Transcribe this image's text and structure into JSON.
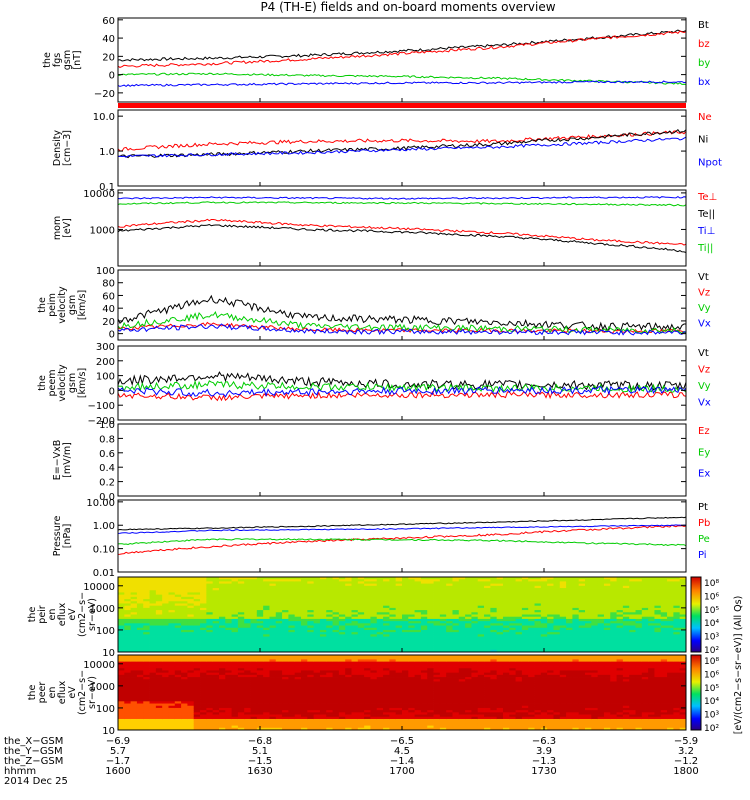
{
  "title": "P4 (TH-E) fields and on-board moments overview",
  "colors": {
    "black": "#000000",
    "red": "#ff0000",
    "green": "#00cc00",
    "blue": "#0000ff"
  },
  "chart_data": [
    {
      "type": "line",
      "panel": "fgs",
      "ylabel_lines": [
        "the",
        "fgs",
        "gsm",
        "[nT]"
      ],
      "ylim": [
        -30,
        62
      ],
      "yscale": "linear",
      "yticks": [
        60,
        40,
        20,
        0,
        -20
      ],
      "ytick_labels": [
        "60",
        "40",
        "20",
        "0",
        "−20"
      ],
      "x": [
        0,
        20,
        40,
        60,
        80,
        100,
        120
      ],
      "series": [
        {
          "name": "Bt",
          "color": "#000000",
          "values": [
            16,
            18,
            21,
            26,
            32,
            40,
            48
          ],
          "noise": 1.5
        },
        {
          "name": "bz",
          "color": "#ff0000",
          "values": [
            9,
            12,
            17,
            23,
            30,
            39,
            47
          ],
          "noise": 1.5
        },
        {
          "name": "by",
          "color": "#00cc00",
          "values": [
            0,
            1,
            -1,
            -2,
            -4,
            -7,
            -10
          ],
          "noise": 1
        },
        {
          "name": "bx",
          "color": "#0000ff",
          "values": [
            -12,
            -11,
            -10,
            -9,
            -9,
            -8,
            -8
          ],
          "noise": 1
        }
      ]
    },
    {
      "type": "line",
      "panel": "density",
      "ylabel_lines": [
        "Density",
        "[cm−3]"
      ],
      "ylim": [
        0.1,
        15
      ],
      "yscale": "log",
      "yticks": [
        10,
        1,
        0.1
      ],
      "ytick_labels": [
        "10.0",
        "1.0",
        "0.1"
      ],
      "x": [
        0,
        20,
        40,
        60,
        80,
        100,
        120
      ],
      "series": [
        {
          "name": "Ne",
          "color": "#ff0000",
          "values": [
            1.1,
            1.6,
            1.9,
            2.0,
            1.9,
            2.6,
            3.5
          ],
          "noise": 0.05
        },
        {
          "name": "Ni",
          "color": "#000000",
          "values": [
            0.7,
            0.8,
            1.0,
            1.2,
            1.6,
            2.4,
            3.8
          ],
          "noise": 0.05
        },
        {
          "name": "Npot",
          "color": "#0000ff",
          "values": [
            0.7,
            0.8,
            0.9,
            1.1,
            1.3,
            1.7,
            2.3
          ],
          "noise": 0.04
        }
      ]
    },
    {
      "type": "line",
      "panel": "temperature",
      "ylabel_lines": [
        "mom",
        "[eV]"
      ],
      "ylim": [
        100,
        12000
      ],
      "yscale": "log",
      "yticks": [
        10000,
        1000
      ],
      "ytick_labels": [
        "10000",
        "1000"
      ],
      "x": [
        0,
        20,
        40,
        60,
        80,
        100,
        120
      ],
      "series": [
        {
          "name": "Te⊥",
          "color": "#ff0000",
          "values": [
            1200,
            1800,
            1300,
            1050,
            800,
            520,
            380
          ],
          "noise": 0.03
        },
        {
          "name": "Te||",
          "color": "#000000",
          "values": [
            900,
            1300,
            1000,
            850,
            650,
            420,
            250
          ],
          "noise": 0.03
        },
        {
          "name": "Ti⊥",
          "color": "#0000ff",
          "values": [
            7000,
            7500,
            7200,
            7000,
            7200,
            7500,
            7600
          ],
          "noise": 0.02
        },
        {
          "name": "Ti||",
          "color": "#00cc00",
          "values": [
            5000,
            5500,
            5400,
            5300,
            5100,
            4900,
            4600
          ],
          "noise": 0.02
        }
      ]
    },
    {
      "type": "line",
      "panel": "velocity-peim",
      "ylabel_lines": [
        "the",
        "peim",
        "velocity",
        "gsm",
        "[km/s]"
      ],
      "ylim": [
        -10,
        100
      ],
      "yscale": "linear",
      "yticks": [
        100,
        80,
        60,
        40,
        20,
        0
      ],
      "ytick_labels": [
        "100",
        "80",
        "60",
        "40",
        "20",
        "0"
      ],
      "x": [
        0,
        20,
        40,
        60,
        80,
        100,
        120
      ],
      "series": [
        {
          "name": "Vt",
          "color": "#000000",
          "values": [
            20,
            55,
            25,
            22,
            18,
            12,
            10
          ],
          "noise": 6
        },
        {
          "name": "Vz",
          "color": "#ff0000",
          "values": [
            8,
            15,
            6,
            5,
            5,
            4,
            4
          ],
          "noise": 3
        },
        {
          "name": "Vy",
          "color": "#00cc00",
          "values": [
            12,
            30,
            12,
            10,
            8,
            6,
            5
          ],
          "noise": 5
        },
        {
          "name": "Vx",
          "color": "#0000ff",
          "values": [
            5,
            12,
            4,
            3,
            3,
            2,
            2
          ],
          "noise": 4
        }
      ]
    },
    {
      "type": "line",
      "panel": "velocity-peem",
      "ylabel_lines": [
        "the",
        "peem",
        "velocity",
        "gsm",
        "[km/s]"
      ],
      "ylim": [
        -200,
        300
      ],
      "yscale": "linear",
      "yticks": [
        300,
        200,
        100,
        0,
        -100,
        -200
      ],
      "ytick_labels": [
        "300",
        "200",
        "100",
        "0",
        "−100",
        "−200"
      ],
      "x": [
        0,
        20,
        40,
        60,
        80,
        100,
        120
      ],
      "series": [
        {
          "name": "Vt",
          "color": "#000000",
          "values": [
            60,
            100,
            60,
            40,
            40,
            35,
            30
          ],
          "noise": 30
        },
        {
          "name": "Vz",
          "color": "#ff0000",
          "values": [
            -30,
            -50,
            -35,
            -30,
            -30,
            -30,
            -30
          ],
          "noise": 20
        },
        {
          "name": "Vy",
          "color": "#00cc00",
          "values": [
            20,
            40,
            25,
            20,
            15,
            15,
            10
          ],
          "noise": 25
        },
        {
          "name": "Vx",
          "color": "#0000ff",
          "values": [
            0,
            -20,
            -10,
            -5,
            0,
            0,
            0
          ],
          "noise": 25
        }
      ]
    },
    {
      "type": "line",
      "panel": "efield",
      "ylabel_lines": [
        "E=−VxB",
        "[mV/m]"
      ],
      "ylim": [
        0,
        1
      ],
      "yscale": "linear",
      "yticks": [
        1.0,
        0.8,
        0.6,
        0.4,
        0.2,
        0.0
      ],
      "ytick_labels": [
        "1.0",
        "0.8",
        "0.6",
        "0.4",
        "0.2",
        "0.0"
      ],
      "x": [],
      "series": [
        {
          "name": "Ez",
          "color": "#ff0000",
          "values": []
        },
        {
          "name": "Ey",
          "color": "#00cc00",
          "values": []
        },
        {
          "name": "Ex",
          "color": "#0000ff",
          "values": []
        }
      ]
    },
    {
      "type": "line",
      "panel": "pressure",
      "ylabel_lines": [
        "Pressure",
        "[nPa]"
      ],
      "ylim": [
        0.01,
        12
      ],
      "yscale": "log",
      "yticks": [
        10,
        1,
        0.1,
        0.01
      ],
      "ytick_labels": [
        "10.00",
        "1.00",
        "0.10",
        "0.01"
      ],
      "x": [
        0,
        20,
        40,
        60,
        80,
        100,
        120
      ],
      "series": [
        {
          "name": "Pt",
          "color": "#000000",
          "values": [
            0.65,
            0.75,
            0.9,
            1.1,
            1.35,
            1.7,
            2.2
          ],
          "noise": 0.02
        },
        {
          "name": "Pb",
          "color": "#ff0000",
          "values": [
            0.06,
            0.12,
            0.2,
            0.28,
            0.4,
            0.65,
            0.95
          ],
          "noise": 0.04
        },
        {
          "name": "Pe",
          "color": "#00cc00",
          "values": [
            0.15,
            0.25,
            0.25,
            0.24,
            0.22,
            0.17,
            0.14
          ],
          "noise": 0.03
        },
        {
          "name": "Pi",
          "color": "#0000ff",
          "values": [
            0.45,
            0.6,
            0.65,
            0.7,
            0.8,
            0.9,
            1.0
          ],
          "noise": 0.02
        }
      ]
    },
    {
      "type": "heatmap",
      "panel": "peir-spectrogram",
      "ylabel_lines": [
        "the",
        "peir",
        "en",
        "eflux",
        "eV",
        "(cm2−s−",
        "sr−eV)"
      ],
      "ylim": [
        10,
        25000
      ],
      "yscale": "log",
      "yticks": [
        10000,
        1000,
        100,
        10
      ],
      "ytick_labels": [
        "10000",
        "1000",
        "100",
        "10"
      ],
      "colorbar_ticks": [
        "10⁸",
        "10⁶",
        "10⁵",
        "10⁴",
        "10³",
        "10²"
      ]
    },
    {
      "type": "heatmap",
      "panel": "peer-spectrogram",
      "ylabel_lines": [
        "the",
        "peer",
        "en",
        "eflux",
        "eV",
        "(cm2−s−",
        "sr−eV)"
      ],
      "ylim": [
        10,
        25000
      ],
      "yscale": "log",
      "yticks": [
        10000,
        1000,
        100,
        10
      ],
      "ytick_labels": [
        "10000",
        "1000",
        "100",
        "10"
      ],
      "colorbar_ticks": [
        "10⁸",
        "10⁶",
        "10⁵",
        "10⁴",
        "10³",
        "10²"
      ]
    }
  ],
  "colorbar_label": "[eV/(cm2−s−sr−eV)] (All Qs)",
  "x_axis": {
    "row_labels": [
      "the_X−GSM",
      "the_Y−GSM",
      "the_Z−GSM",
      "hhmm",
      "2014 Dec 25"
    ],
    "tick_x": [
      0,
      30,
      60,
      90,
      120
    ],
    "columns": [
      [
        "−6.9",
        "5.7",
        "−1.7",
        "1600"
      ],
      [
        "−6.8",
        "5.1",
        "−1.5",
        "1630"
      ],
      [
        "−6.5",
        "4.5",
        "−1.4",
        "1700"
      ],
      [
        "−6.3",
        "3.9",
        "−1.3",
        "1730"
      ],
      [
        "−5.9",
        "3.2",
        "−1.2",
        "1800"
      ]
    ]
  }
}
